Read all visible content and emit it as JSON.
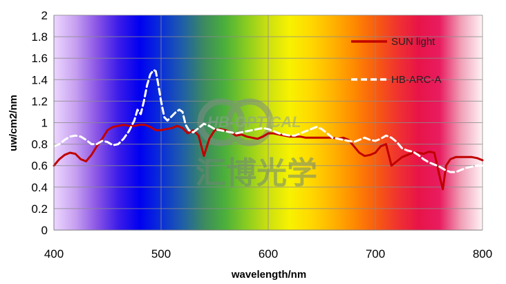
{
  "chart_data": {
    "type": "line",
    "xlabel": "wavelength/nm",
    "ylabel": "uw/cm2/nm",
    "xlim": [
      400,
      800
    ],
    "ylim": [
      0,
      2
    ],
    "xticks": [
      400,
      500,
      600,
      700,
      800
    ],
    "yticks": [
      0,
      0.2,
      0.4,
      0.6,
      0.8,
      1,
      1.2,
      1.4,
      1.6,
      1.8,
      2
    ],
    "ytick_labels": [
      "0",
      "0.2",
      "0.4",
      "0.6",
      "0.8",
      "1",
      "1.2",
      "1.4",
      "1.6",
      "1.8",
      "2"
    ],
    "grid": true,
    "legend_position": "top-right",
    "background": "visible-spectrum gradient",
    "series": [
      {
        "name": "SUN light",
        "color": "#c00000",
        "style": "solid",
        "x": [
          400,
          405,
          410,
          415,
          420,
          425,
          430,
          435,
          440,
          445,
          450,
          455,
          460,
          465,
          470,
          475,
          480,
          485,
          490,
          495,
          500,
          505,
          510,
          515,
          520,
          525,
          530,
          535,
          540,
          545,
          550,
          555,
          560,
          565,
          570,
          575,
          580,
          585,
          590,
          595,
          600,
          605,
          610,
          615,
          620,
          625,
          630,
          635,
          640,
          645,
          650,
          655,
          660,
          665,
          670,
          675,
          680,
          685,
          690,
          695,
          700,
          705,
          710,
          715,
          720,
          725,
          730,
          735,
          740,
          745,
          750,
          755,
          760,
          763,
          766,
          770,
          775,
          780,
          785,
          790,
          795,
          800
        ],
        "y": [
          0.6,
          0.66,
          0.7,
          0.72,
          0.71,
          0.66,
          0.64,
          0.7,
          0.78,
          0.85,
          0.93,
          0.96,
          0.97,
          0.98,
          0.97,
          0.97,
          0.98,
          0.98,
          0.96,
          0.93,
          0.93,
          0.94,
          0.95,
          0.97,
          0.95,
          0.9,
          0.93,
          0.88,
          0.69,
          0.85,
          0.93,
          0.94,
          0.93,
          0.91,
          0.88,
          0.89,
          0.87,
          0.86,
          0.85,
          0.87,
          0.9,
          0.9,
          0.89,
          0.88,
          0.87,
          0.87,
          0.87,
          0.86,
          0.86,
          0.86,
          0.86,
          0.86,
          0.86,
          0.85,
          0.86,
          0.84,
          0.78,
          0.72,
          0.69,
          0.7,
          0.72,
          0.78,
          0.8,
          0.6,
          0.64,
          0.68,
          0.7,
          0.72,
          0.72,
          0.71,
          0.73,
          0.72,
          0.5,
          0.38,
          0.6,
          0.66,
          0.68,
          0.68,
          0.68,
          0.68,
          0.67,
          0.65
        ]
      },
      {
        "name": "HB-ARC-A",
        "color": "#ffffff",
        "style": "dashed",
        "x": [
          400,
          405,
          410,
          415,
          420,
          425,
          430,
          435,
          440,
          445,
          450,
          455,
          460,
          465,
          470,
          475,
          478,
          481,
          484,
          487,
          490,
          493,
          495,
          497,
          500,
          503,
          506,
          510,
          514,
          517,
          520,
          523,
          526,
          530,
          535,
          540,
          545,
          550,
          555,
          560,
          565,
          570,
          575,
          580,
          585,
          590,
          595,
          600,
          605,
          610,
          615,
          620,
          625,
          630,
          635,
          640,
          645,
          650,
          655,
          660,
          665,
          670,
          675,
          680,
          685,
          690,
          695,
          700,
          705,
          710,
          715,
          720,
          725,
          730,
          735,
          740,
          745,
          750,
          755,
          760,
          765,
          770,
          775,
          780,
          785,
          790,
          795,
          800
        ],
        "y": [
          0.78,
          0.8,
          0.84,
          0.87,
          0.88,
          0.87,
          0.84,
          0.8,
          0.8,
          0.83,
          0.82,
          0.79,
          0.8,
          0.85,
          0.92,
          1.02,
          1.12,
          1.08,
          1.2,
          1.35,
          1.45,
          1.49,
          1.48,
          1.38,
          1.2,
          1.05,
          1.02,
          1.06,
          1.1,
          1.12,
          1.1,
          0.98,
          0.93,
          0.91,
          0.95,
          0.99,
          0.97,
          0.94,
          0.93,
          0.92,
          0.91,
          0.9,
          0.91,
          0.92,
          0.93,
          0.94,
          0.95,
          0.94,
          0.92,
          0.9,
          0.89,
          0.88,
          0.88,
          0.9,
          0.92,
          0.94,
          0.96,
          0.94,
          0.9,
          0.86,
          0.85,
          0.84,
          0.83,
          0.82,
          0.84,
          0.86,
          0.84,
          0.83,
          0.85,
          0.88,
          0.86,
          0.82,
          0.76,
          0.74,
          0.73,
          0.7,
          0.66,
          0.63,
          0.61,
          0.59,
          0.56,
          0.54,
          0.54,
          0.56,
          0.58,
          0.59,
          0.6,
          0.6
        ]
      }
    ]
  },
  "watermark": {
    "logo_text": "HB-OPTICAL",
    "chinese_text": "汇博光学",
    "color": "#7f8f84"
  },
  "colors": {
    "sun": "#c00000",
    "arc": "#ffffff",
    "grid": "#8c8c8c",
    "axis": "#7f7f7f"
  }
}
